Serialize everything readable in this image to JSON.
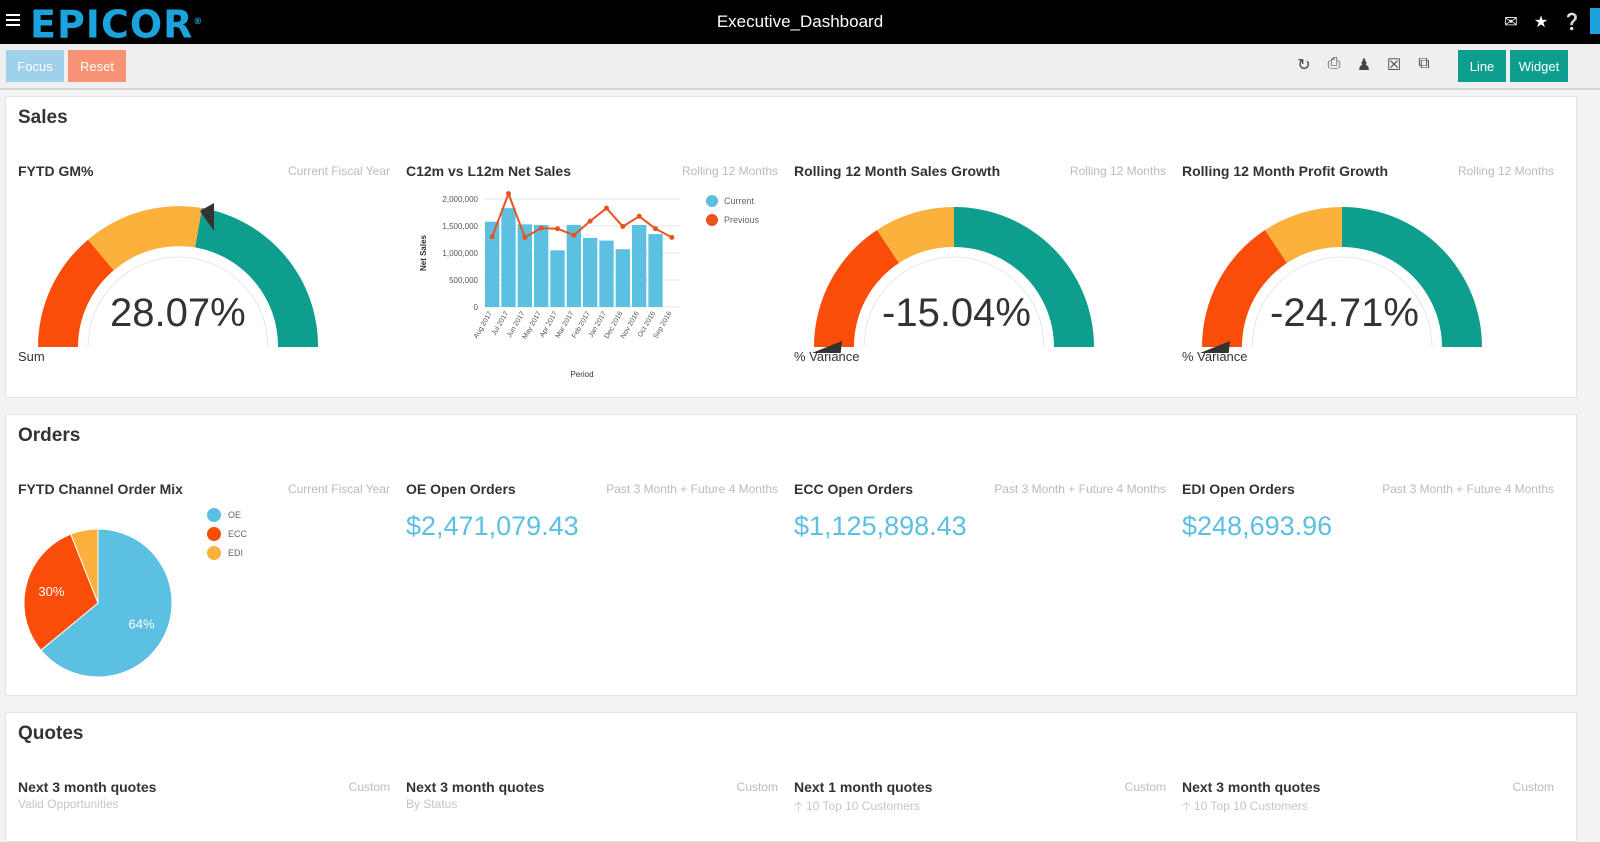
{
  "header": {
    "logo": "EPICOR",
    "title": "Executive_Dashboard"
  },
  "toolbar": {
    "focus_label": "Focus",
    "reset_label": "Reset",
    "line_label": "Line",
    "widget_label": "Widget"
  },
  "sections": {
    "sales": {
      "title": "Sales",
      "gm": {
        "title": "FYTD GM%",
        "scope": "Current Fiscal Year",
        "value": "28.07%",
        "label": "Sum"
      },
      "netsales": {
        "title": "C12m vs L12m Net Sales",
        "scope": "Rolling 12 Months"
      },
      "sales_growth": {
        "title": "Rolling 12 Month Sales Growth",
        "scope": "Rolling 12 Months",
        "value": "-15.04%",
        "label": "% Variance"
      },
      "profit_growth": {
        "title": "Rolling 12 Month Profit Growth",
        "scope": "Rolling 12 Months",
        "value": "-24.71%",
        "label": "% Variance"
      }
    },
    "orders": {
      "title": "Orders",
      "mix": {
        "title": "FYTD Channel Order Mix",
        "scope": "Current Fiscal Year"
      },
      "oe": {
        "title": "OE Open Orders",
        "scope": "Past 3 Month + Future 4 Months",
        "value": "$2,471,079.43"
      },
      "ecc": {
        "title": "ECC Open Orders",
        "scope": "Past 3 Month + Future 4 Months",
        "value": "$1,125,898.43"
      },
      "edi": {
        "title": "EDI Open Orders",
        "scope": "Past 3 Month + Future 4 Months",
        "value": "$248,693.96"
      }
    },
    "quotes": {
      "title": "Quotes",
      "q1": {
        "title": "Next 3 month quotes",
        "scope": "Custom",
        "sub": "Valid Opportunities"
      },
      "q2": {
        "title": "Next 3 month quotes",
        "scope": "Custom",
        "sub": "By Status"
      },
      "q3": {
        "title": "Next 1 month quotes",
        "scope": "Custom",
        "sub": "10  Top 10 Customers"
      },
      "q4": {
        "title": "Next 3 month quotes",
        "scope": "Custom",
        "sub": "10  Top 10 Customers"
      }
    }
  },
  "colors": {
    "teal": "#0d9e8e",
    "amber": "#fbb13c",
    "orange": "#fa4d09",
    "blue": "#5bc0e2"
  },
  "chart_data": [
    {
      "type": "bar",
      "title": "C12m vs L12m Net Sales",
      "xlabel": "Period",
      "ylabel": "Net Sales",
      "categories": [
        "Aug 2017",
        "Jul 2017",
        "Jun 2017",
        "May 2017",
        "Apr 2017",
        "Mar 2017",
        "Feb 2017",
        "Jan 2017",
        "Dec 2016",
        "Nov 2016",
        "Oct 2016",
        "Sep 2016"
      ],
      "ylim": [
        0,
        2000000
      ],
      "yticks": [
        "0",
        "500,000",
        "1,000,000",
        "1,500,000",
        "2,000,000"
      ],
      "series": [
        {
          "name": "Current",
          "kind": "bar",
          "values": [
            1580000,
            1830000,
            1530000,
            1520000,
            1050000,
            1520000,
            1280000,
            1230000,
            1070000,
            1520000,
            1350000,
            null
          ]
        },
        {
          "name": "Previous",
          "kind": "line",
          "values": [
            1300000,
            2100000,
            1290000,
            1460000,
            1450000,
            1330000,
            1590000,
            1830000,
            1490000,
            1680000,
            1450000,
            1290000
          ]
        }
      ]
    },
    {
      "type": "pie",
      "title": "FYTD Channel Order Mix",
      "labels": [
        "OE",
        "ECC",
        "EDI"
      ],
      "values": [
        64,
        30,
        6
      ],
      "data_labels": [
        "64%",
        "30%",
        ""
      ]
    }
  ]
}
